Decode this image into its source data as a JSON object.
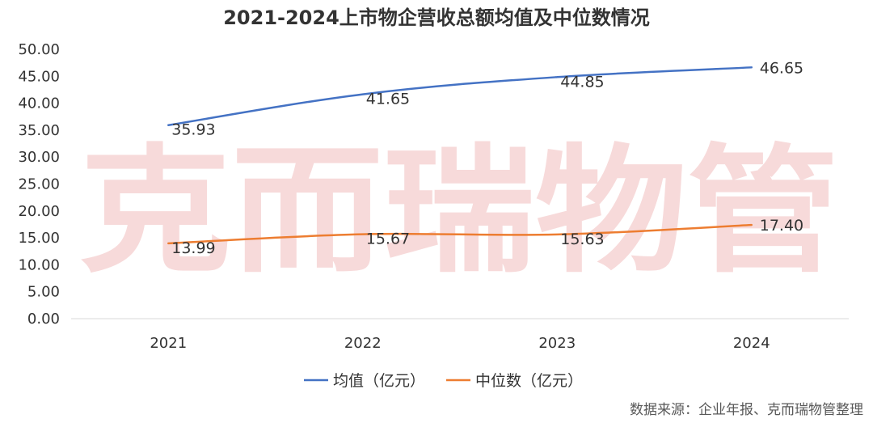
{
  "chart_data": {
    "type": "line",
    "title": "2021-2024上市物企营收总额均值及中位数情况",
    "categories": [
      "2021",
      "2022",
      "2023",
      "2024"
    ],
    "series": [
      {
        "name": "均值（亿元）",
        "color": "#4472c4",
        "values": [
          35.93,
          41.65,
          44.85,
          46.65
        ],
        "labels": [
          "35.93",
          "41.65",
          "44.85",
          "46.65"
        ]
      },
      {
        "name": "中位数（亿元）",
        "color": "#ed7d31",
        "values": [
          13.99,
          15.67,
          15.63,
          17.4
        ],
        "labels": [
          "13.99",
          "15.67",
          "15.63",
          "17.40"
        ]
      }
    ],
    "ylim": [
      0,
      50
    ],
    "yticks": [
      "0.00",
      "5.00",
      "10.00",
      "15.00",
      "20.00",
      "25.00",
      "30.00",
      "35.00",
      "40.00",
      "45.00",
      "50.00"
    ],
    "xlabel": "",
    "ylabel": "",
    "legend_position": "bottom",
    "grid": false
  },
  "watermark": "克而瑞物管",
  "source": "数据来源：企业年报、克而瑞物管整理"
}
